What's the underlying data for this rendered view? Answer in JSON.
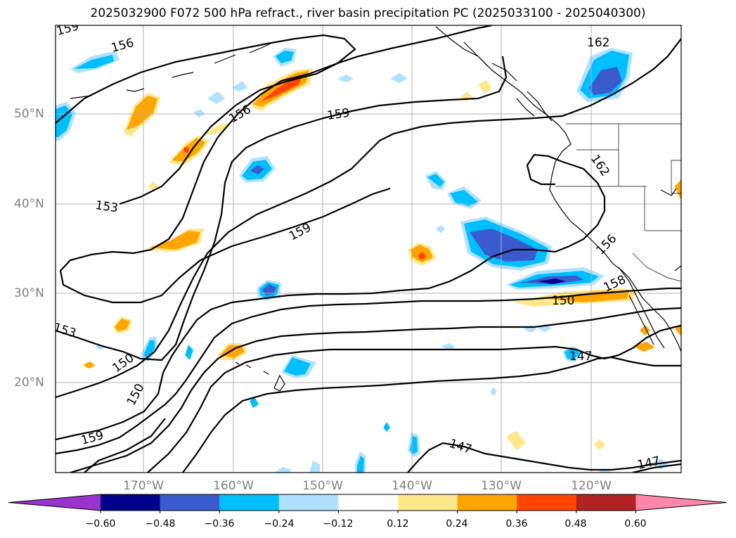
{
  "title": "2025032900 F072 500 hPa refract., river basin precipitation PC (2025033100 - 2025040300)",
  "lat_labels": [
    "50°N",
    "40°N",
    "30°N",
    "20°N"
  ],
  "lon_labels": [
    "170°W",
    "160°W",
    "150°W",
    "140°W",
    "130°W",
    "120°W"
  ],
  "contour_labels": [
    "159",
    "156",
    "162",
    "156",
    "159",
    "162",
    "153",
    "159",
    "156",
    "153",
    "158",
    "150",
    "150",
    "150",
    "147",
    "147",
    "147",
    "159"
  ],
  "colorbar": {
    "ticks": [
      "−0.60",
      "−0.48",
      "−0.36",
      "−0.24",
      "−0.12",
      "0.12",
      "0.24",
      "0.36",
      "0.48",
      "0.60"
    ],
    "colors": [
      "#9933cc",
      "#00008b",
      "#3a5bcf",
      "#00bfff",
      "#b0e2ff",
      "#ffffff",
      "#ffe88c",
      "#ffa500",
      "#ff4500",
      "#b22222",
      "#ff88aa"
    ]
  },
  "colors": {
    "grid": "#b0b0b0",
    "contour": "#000000",
    "axis_text": "#808080"
  }
}
